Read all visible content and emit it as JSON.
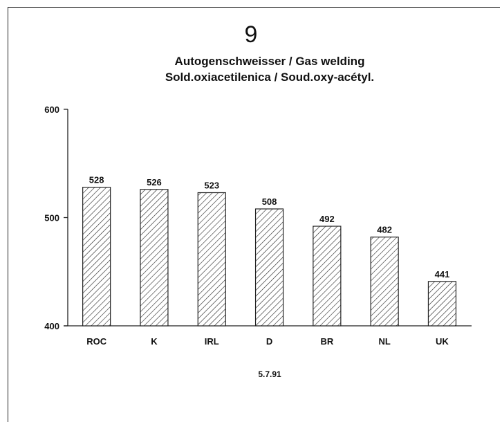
{
  "chart_data": {
    "type": "bar",
    "title_number": "9",
    "title_line1": "Autogenschweisser / Gas welding",
    "title_line2": "Sold.oxiacetilenica / Soud.oxy-acétyl.",
    "categories": [
      "ROC",
      "K",
      "IRL",
      "D",
      "BR",
      "NL",
      "UK"
    ],
    "values": [
      528,
      526,
      523,
      508,
      492,
      482,
      441
    ],
    "value_labels": [
      "528",
      "526",
      "523",
      "508",
      "492",
      "482",
      "441"
    ],
    "ylim": [
      400,
      600
    ],
    "yticks": [
      400,
      500,
      600
    ],
    "ytick_labels": [
      "400",
      "500",
      "600"
    ],
    "bar_fill": "hatched",
    "grid": false,
    "footnote": "5.7.91"
  }
}
